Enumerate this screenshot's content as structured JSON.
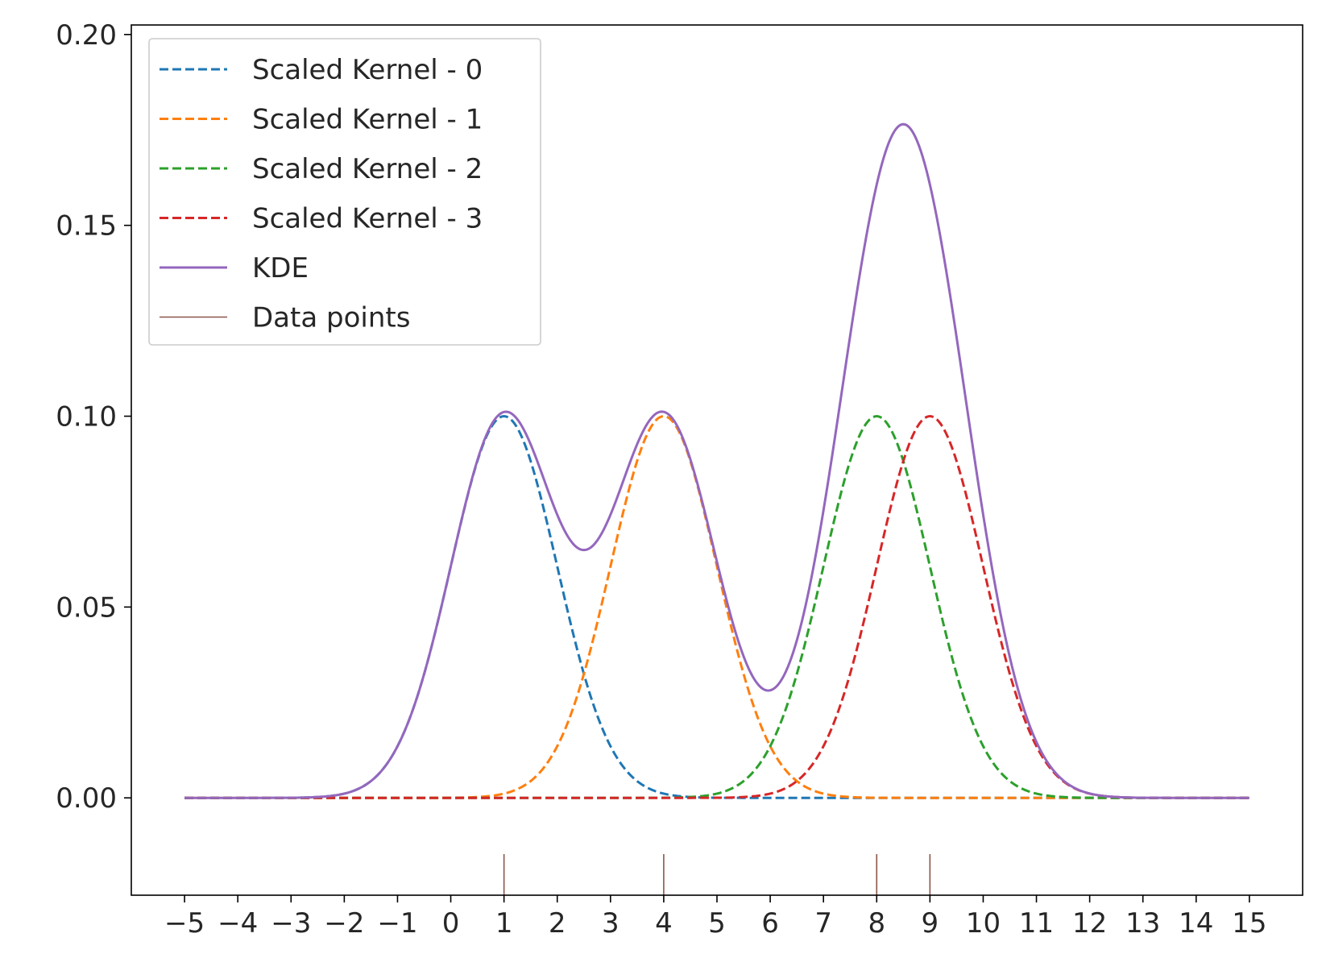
{
  "chart_data": {
    "type": "line",
    "title": "",
    "xlabel": "",
    "ylabel": "",
    "xlim": [
      -6,
      16
    ],
    "ylim": [
      -0.0255,
      0.2025
    ],
    "x_range_plotted": [
      -5,
      15
    ],
    "x_ticks": [
      -5,
      -4,
      -3,
      -2,
      -1,
      0,
      1,
      2,
      3,
      4,
      5,
      6,
      7,
      8,
      9,
      10,
      11,
      12,
      13,
      14,
      15
    ],
    "x_tick_labels": [
      "−5",
      "−4",
      "−3",
      "−2",
      "−1",
      "0",
      "1",
      "2",
      "3",
      "4",
      "5",
      "6",
      "7",
      "8",
      "9",
      "10",
      "11",
      "12",
      "13",
      "14",
      "15"
    ],
    "y_ticks": [
      0,
      0.05,
      0.1,
      0.15,
      0.2
    ],
    "y_tick_labels": [
      "0.00",
      "0.05",
      "0.10",
      "0.15",
      "0.20"
    ],
    "grid": false,
    "legend_position": "top-left",
    "data_points": [
      1,
      4,
      8,
      9
    ],
    "kernel": {
      "shape": "gaussian",
      "sigma": 1.0,
      "peak": 0.1
    },
    "series": [
      {
        "name": "Scaled Kernel - 0",
        "style": "dashed",
        "color": "#1f77b4",
        "center": 1
      },
      {
        "name": "Scaled Kernel - 1",
        "style": "dashed",
        "color": "#ff7f0e",
        "center": 4
      },
      {
        "name": "Scaled Kernel - 2",
        "style": "dashed",
        "color": "#2ca02c",
        "center": 8
      },
      {
        "name": "Scaled Kernel - 3",
        "style": "dashed",
        "color": "#d62728",
        "center": 9
      },
      {
        "name": "KDE",
        "style": "solid",
        "color": "#9467bd",
        "sum_of": [
          0,
          1,
          2,
          3
        ]
      },
      {
        "name": "Data points",
        "style": "rug",
        "color": "#8c564b"
      }
    ]
  }
}
